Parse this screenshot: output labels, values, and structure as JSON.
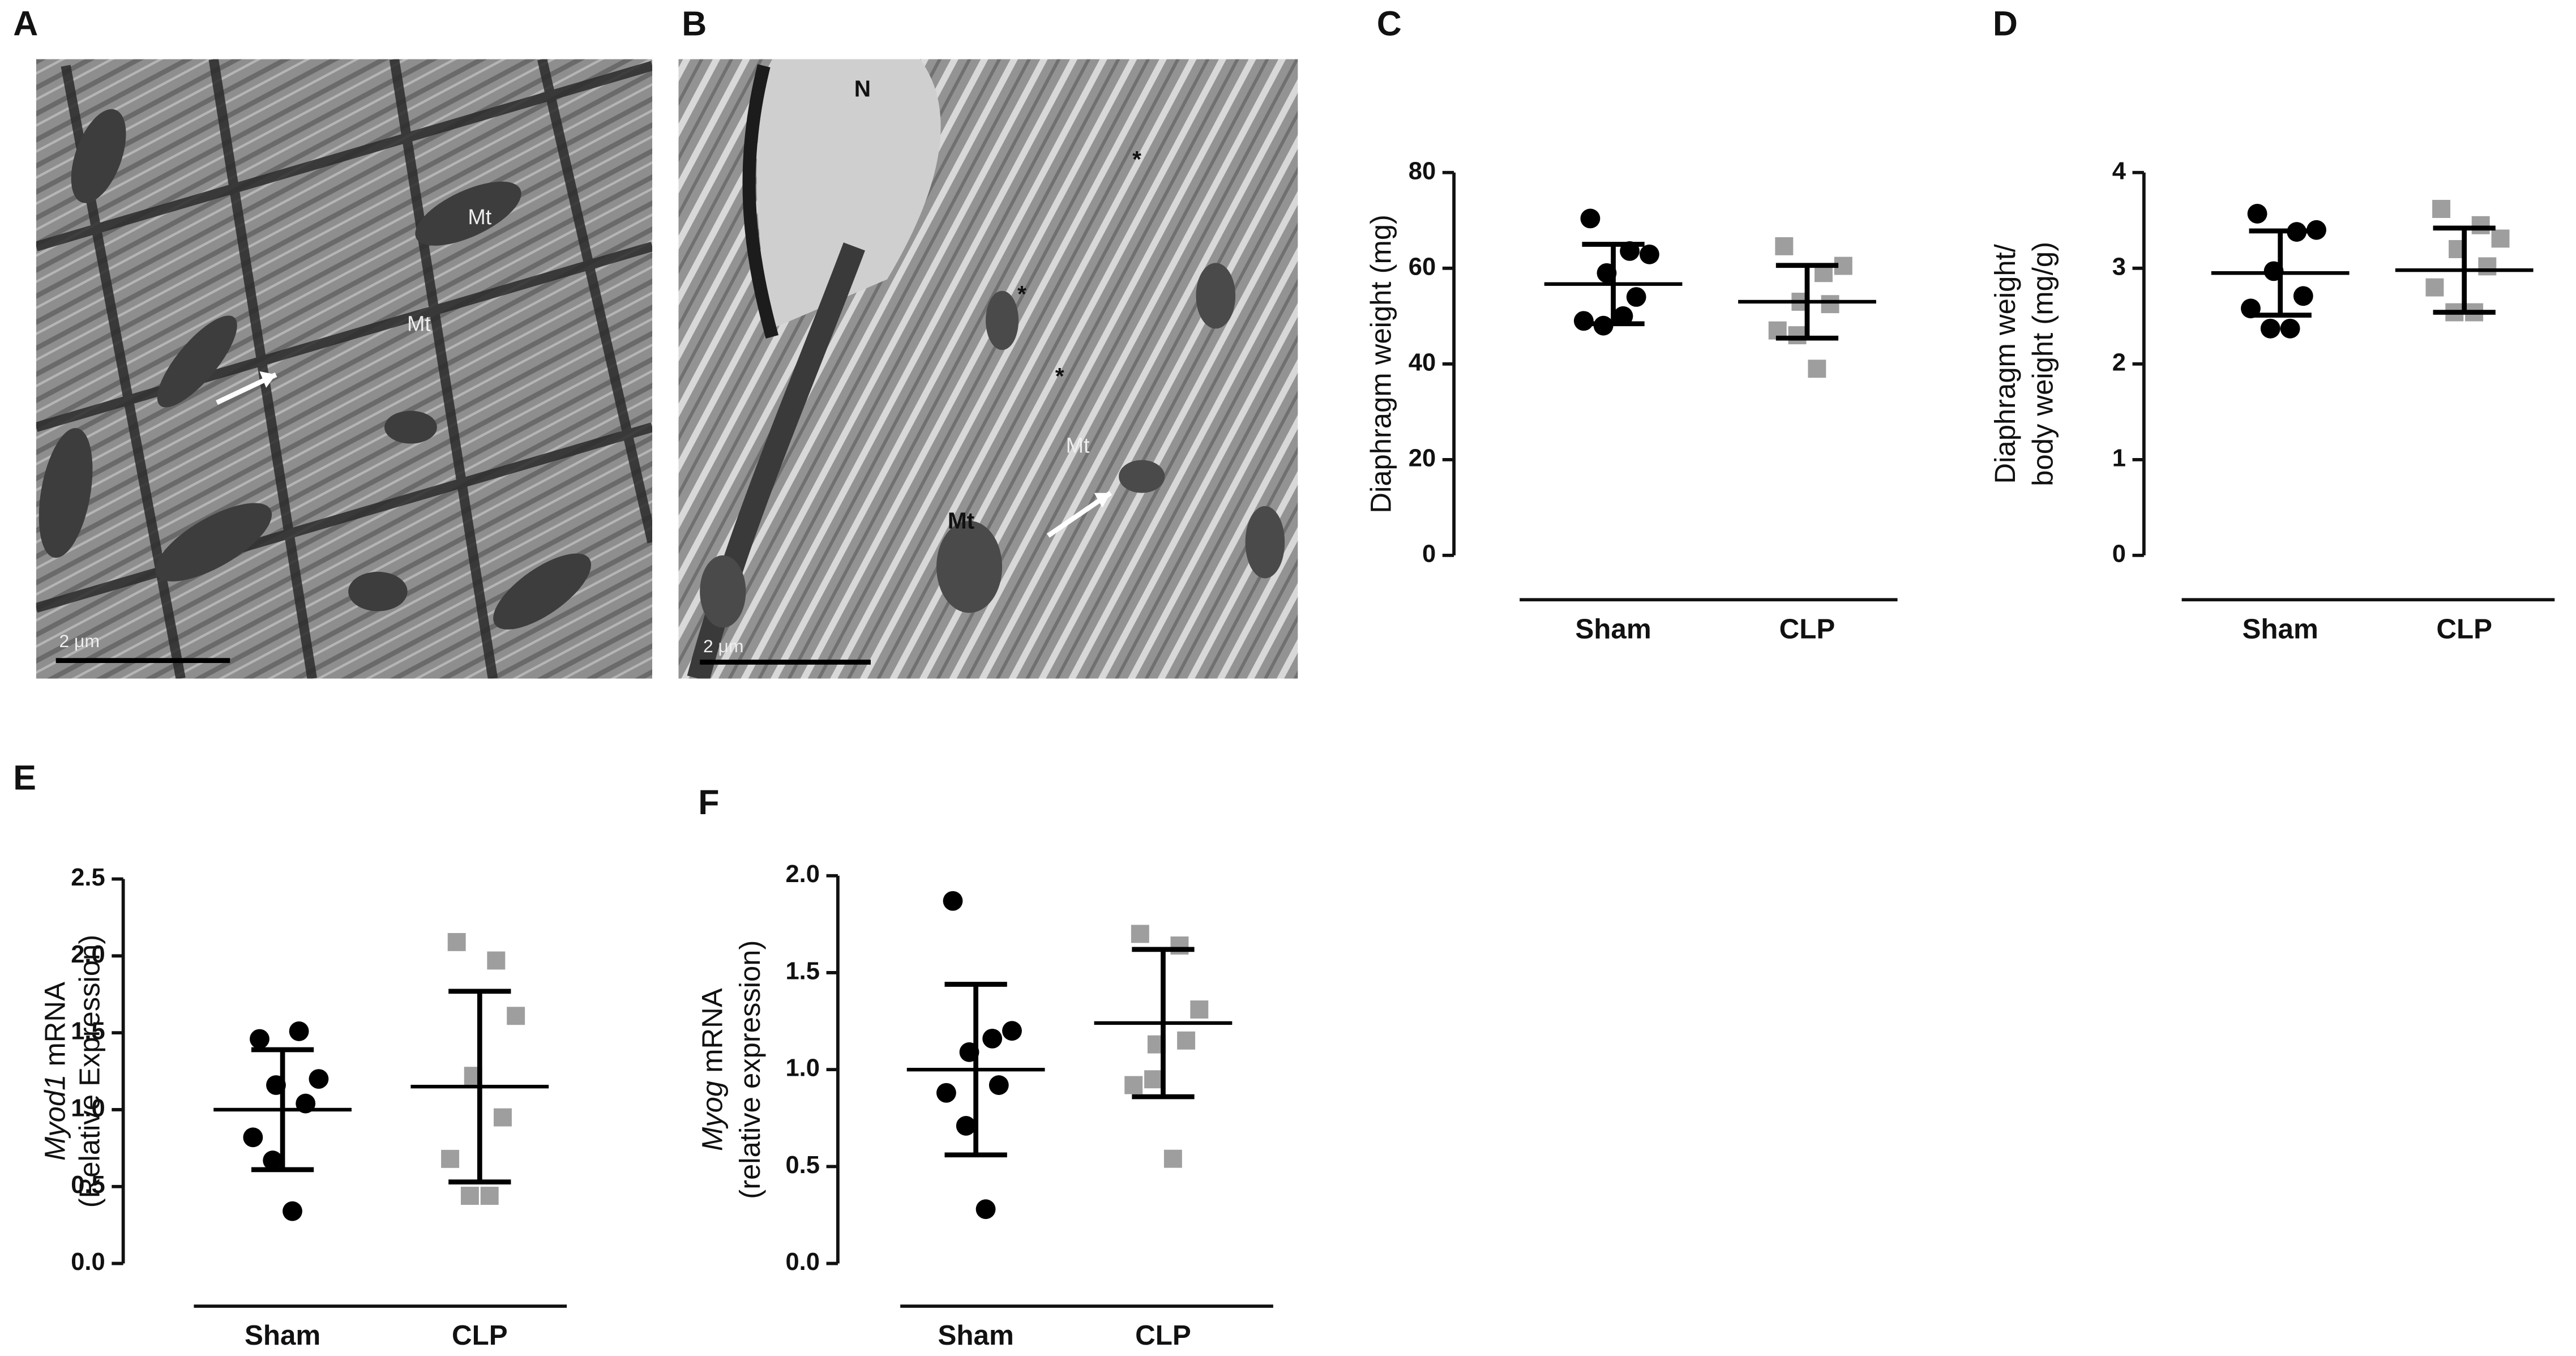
{
  "chart_data": [
    {
      "panel": "C",
      "type": "dot",
      "ylabel": [
        [
          {
            "text": "Diaphragm weight (mg)"
          }
        ]
      ],
      "categories": [
        "Sham",
        "CLP"
      ],
      "points": [
        [
          70.4,
          63.6,
          62.9,
          59,
          54,
          49,
          48,
          50
        ],
        [
          64.6,
          59,
          60.5,
          53,
          52.5,
          47,
          46,
          39
        ]
      ],
      "mean": [
        56.7,
        53
      ],
      "sd": [
        8.3,
        7.6
      ],
      "colors": [
        "#000000",
        "#9e9e9e"
      ],
      "markers": [
        "circle",
        "square"
      ],
      "ylim": [
        0,
        80
      ],
      "yticks": [
        0,
        20,
        40,
        60,
        80
      ]
    },
    {
      "panel": "D",
      "type": "dot",
      "ylabel": [
        [
          {
            "text": "Diaphragm weight/"
          }
        ],
        [
          {
            "text": "body weight (mg/g)"
          }
        ]
      ],
      "categories": [
        "Sham",
        "CLP"
      ],
      "points": [
        [
          3.57,
          3.38,
          3.4,
          2.97,
          2.71,
          2.58,
          2.37,
          2.37
        ],
        [
          3.62,
          3.45,
          3.31,
          3.2,
          3.02,
          2.8,
          2.54,
          2.54
        ]
      ],
      "mean": [
        2.95,
        2.98
      ],
      "sd": [
        0.44,
        0.44
      ],
      "colors": [
        "#000000",
        "#9e9e9e"
      ],
      "markers": [
        "circle",
        "square"
      ],
      "ylim": [
        0,
        4
      ],
      "yticks": [
        0,
        1,
        2,
        3,
        4
      ]
    },
    {
      "panel": "E",
      "type": "dot",
      "ylabel": [
        [
          {
            "text": "Myod1",
            "italic": true
          },
          {
            "text": " mRNA"
          }
        ],
        [
          {
            "text": "(Relative Expression)"
          }
        ]
      ],
      "categories": [
        "Sham",
        "CLP"
      ],
      "points": [
        [
          1.46,
          1.51,
          1.2,
          1.16,
          1.04,
          0.82,
          0.67,
          0.34
        ],
        [
          2.09,
          1.97,
          1.61,
          1.22,
          0.95,
          0.68,
          0.44,
          0.44
        ]
      ],
      "mean": [
        1.0,
        1.15
      ],
      "sd": [
        0.39,
        0.62
      ],
      "colors": [
        "#000000",
        "#9e9e9e"
      ],
      "markers": [
        "circle",
        "square"
      ],
      "ylim": [
        0,
        2.5
      ],
      "yticks": [
        {
          "value": 0,
          "label": "0.0"
        },
        0.5,
        {
          "value": 1,
          "label": "1.0"
        },
        1.5,
        {
          "value": 2,
          "label": "2.0"
        },
        2.5
      ]
    },
    {
      "panel": "F",
      "type": "dot",
      "ylabel": [
        [
          {
            "text": "Myog",
            "italic": true
          },
          {
            "text": " mRNA"
          }
        ],
        [
          {
            "text": "(relative expression)"
          }
        ]
      ],
      "categories": [
        "Sham",
        "CLP"
      ],
      "points": [
        [
          1.87,
          1.16,
          1.2,
          1.09,
          0.92,
          0.88,
          0.71,
          0.28
        ],
        [
          1.7,
          1.64,
          1.31,
          1.13,
          1.15,
          0.92,
          0.95,
          0.54
        ]
      ],
      "mean": [
        1.0,
        1.24
      ],
      "sd": [
        0.44,
        0.38
      ],
      "colors": [
        "#000000",
        "#9e9e9e"
      ],
      "markers": [
        "circle",
        "square"
      ],
      "ylim": [
        0,
        2
      ],
      "yticks": [
        {
          "value": 0,
          "label": "0.0"
        },
        0.5,
        {
          "value": 1,
          "label": "1.0"
        },
        1.5,
        {
          "value": 2,
          "label": "2.0"
        }
      ]
    }
  ],
  "images": [
    {
      "panel": "A",
      "labels": [
        "Mt",
        "Mt"
      ],
      "scale_bar": "2 μm"
    },
    {
      "panel": "B",
      "labels": [
        "N",
        "*",
        "*",
        "*",
        "Mt",
        "Mt"
      ],
      "scale_bar": "2 μm"
    }
  ]
}
